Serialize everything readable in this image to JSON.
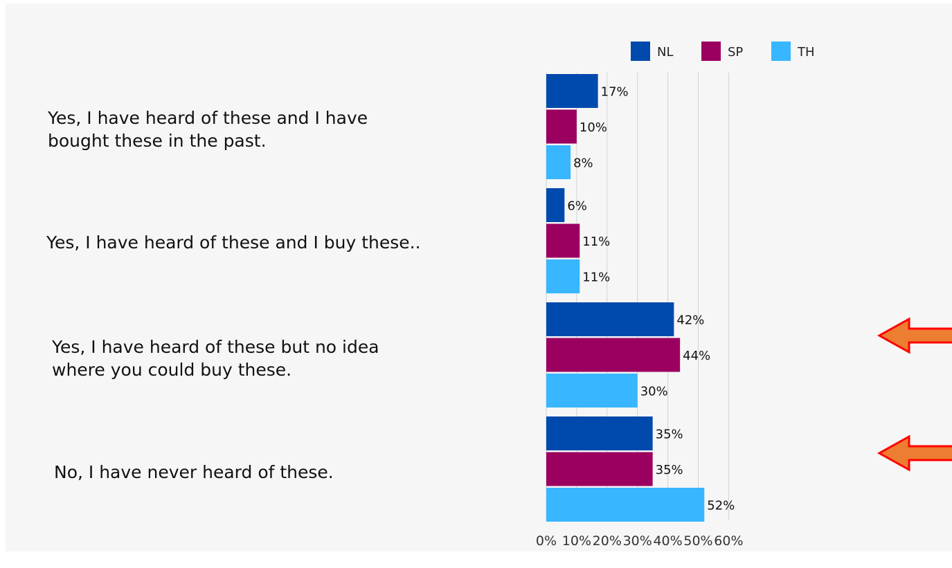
{
  "chart_data": {
    "type": "bar",
    "orientation": "horizontal",
    "categories": [
      "Yes, I have heard of these and I have\nbought these in the past.",
      "Yes, I have heard of these and I buy these..",
      "Yes, I have heard of these but no idea\nwhere you could buy these.",
      "No, I have never heard of these."
    ],
    "series": [
      {
        "name": "NL",
        "color": "#004aad",
        "values": [
          17,
          6,
          42,
          35
        ],
        "labels": [
          "17%",
          "6%",
          "42%",
          "35%"
        ]
      },
      {
        "name": "SP",
        "color": "#9b0060",
        "values": [
          10,
          11,
          44,
          35
        ],
        "labels": [
          "10%",
          "11%",
          "44%",
          "35%"
        ]
      },
      {
        "name": "TH",
        "color": "#38b6ff",
        "values": [
          8,
          11,
          30,
          52
        ],
        "labels": [
          "8%",
          "11%",
          "30%",
          "52%"
        ]
      }
    ],
    "xlim": [
      0,
      60
    ],
    "x_ticks": [
      0,
      10,
      20,
      30,
      40,
      50,
      60
    ],
    "x_tick_labels": [
      "0%",
      "10%",
      "20%",
      "30%",
      "40%",
      "50%",
      "60%"
    ],
    "grid": true,
    "legend_position": "top",
    "annotations": [
      {
        "type": "arrow-left-icon",
        "color": "#ed7d31",
        "outline": "#ff0000",
        "points_to_category": 2
      },
      {
        "type": "arrow-left-icon",
        "color": "#ed7d31",
        "outline": "#ff0000",
        "points_to_category": 3
      }
    ]
  }
}
